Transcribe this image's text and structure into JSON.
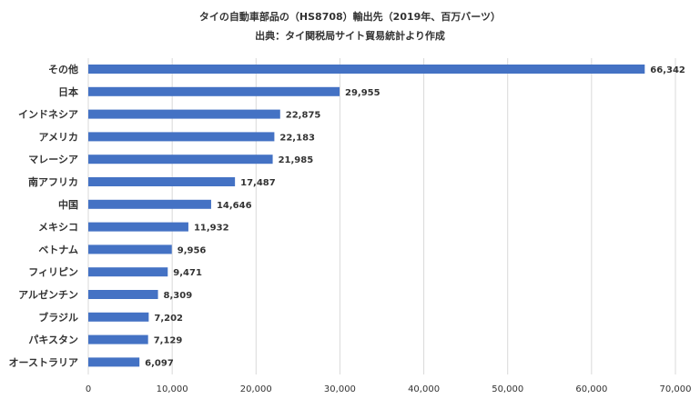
{
  "chart_data": {
    "type": "bar",
    "orientation": "horizontal",
    "title": "タイの自動車部品の（HS8708）輸出先（2019年、百万バーツ）",
    "subtitle": "出典：タイ関税局サイト貿易統計より作成",
    "xlabel": "",
    "ylabel": "",
    "categories": [
      "その他",
      "日本",
      "インドネシア",
      "アメリカ",
      "マレーシア",
      "南アフリカ",
      "中国",
      "メキシコ",
      "ベトナム",
      "フィリピン",
      "アルゼンチン",
      "ブラジル",
      "パキスタン",
      "オーストラリア"
    ],
    "values": [
      66342,
      29955,
      22875,
      22183,
      21985,
      17487,
      14646,
      11932,
      9956,
      9471,
      8309,
      7202,
      7129,
      6097
    ],
    "value_labels": [
      "66,342",
      "29,955",
      "22,875",
      "22,183",
      "21,985",
      "17,487",
      "14,646",
      "11,932",
      "9,956",
      "9,471",
      "8,309",
      "7,202",
      "7,129",
      "6,097"
    ],
    "xlim": [
      0,
      70000
    ],
    "x_ticks": [
      0,
      10000,
      20000,
      30000,
      40000,
      50000,
      60000,
      70000
    ],
    "x_tick_labels": [
      "0",
      "10,000",
      "20,000",
      "30,000",
      "40,000",
      "50,000",
      "60,000",
      "70,000"
    ],
    "grid": "vertical",
    "legend": "none",
    "bar_color": "#4472c4",
    "grid_color": "#d9d9d9",
    "text_color": "#333333"
  }
}
